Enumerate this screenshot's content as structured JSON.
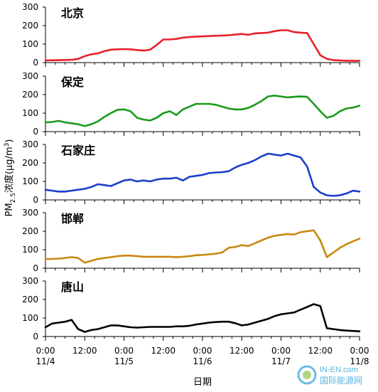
{
  "chart_data": {
    "type": "line",
    "ylabel_main": "PM",
    "ylabel_sub": "2.5",
    "ylabel_rest": "浓度(μg/m",
    "ylabel_sup": "3",
    "ylabel_close": ")",
    "xlabel": "日期",
    "xlim": [
      0,
      96
    ],
    "ylim": [
      0,
      300
    ],
    "yticks": [
      0,
      100,
      200,
      300
    ],
    "xticks": [
      {
        "x": 0,
        "time": "0:00",
        "date": "11/4"
      },
      {
        "x": 12,
        "time": "12:00",
        "date": ""
      },
      {
        "x": 24,
        "time": "0:00",
        "date": "11/5"
      },
      {
        "x": 36,
        "time": "12:00",
        "date": ""
      },
      {
        "x": 48,
        "time": "0:00",
        "date": "11/6"
      },
      {
        "x": 60,
        "time": "12:00",
        "date": ""
      },
      {
        "x": 72,
        "time": "0:00",
        "date": "11/7"
      },
      {
        "x": 84,
        "time": "12:00",
        "date": ""
      },
      {
        "x": 96,
        "time": "0:00",
        "date": "11/8"
      }
    ],
    "panels": [
      {
        "name": "北京",
        "color": "#e8202a",
        "x": [
          0,
          4,
          8,
          10,
          12,
          14,
          16,
          18,
          20,
          22,
          24,
          26,
          28,
          30,
          32,
          34,
          36,
          38,
          40,
          42,
          44,
          46,
          48,
          52,
          56,
          60,
          62,
          64,
          66,
          68,
          70,
          72,
          74,
          76,
          78,
          80,
          82,
          84,
          86,
          88,
          90,
          92,
          94,
          96
        ],
        "y": [
          12,
          13,
          15,
          20,
          35,
          45,
          50,
          62,
          70,
          72,
          73,
          72,
          68,
          65,
          70,
          95,
          125,
          125,
          128,
          135,
          138,
          140,
          142,
          145,
          148,
          155,
          150,
          158,
          160,
          162,
          170,
          175,
          175,
          165,
          162,
          160,
          100,
          40,
          20,
          14,
          12,
          10,
          10,
          10
        ]
      },
      {
        "name": "保定",
        "color": "#1a9a1a",
        "x": [
          0,
          2,
          4,
          6,
          8,
          10,
          12,
          14,
          16,
          18,
          20,
          22,
          24,
          26,
          28,
          30,
          32,
          34,
          36,
          38,
          40,
          42,
          44,
          46,
          48,
          50,
          52,
          54,
          56,
          58,
          60,
          62,
          64,
          66,
          68,
          70,
          72,
          74,
          76,
          78,
          80,
          82,
          84,
          86,
          88,
          90,
          92,
          94,
          96
        ],
        "y": [
          50,
          52,
          58,
          50,
          45,
          40,
          30,
          40,
          55,
          80,
          100,
          118,
          120,
          110,
          75,
          65,
          60,
          75,
          100,
          110,
          90,
          120,
          135,
          150,
          150,
          150,
          145,
          135,
          125,
          120,
          120,
          128,
          145,
          165,
          190,
          195,
          190,
          185,
          188,
          190,
          188,
          150,
          110,
          75,
          85,
          110,
          125,
          130,
          140
        ]
      },
      {
        "name": "石家庄",
        "color": "#1a3fc8",
        "x": [
          0,
          2,
          4,
          6,
          8,
          10,
          12,
          14,
          16,
          18,
          20,
          22,
          24,
          26,
          28,
          30,
          32,
          34,
          36,
          38,
          40,
          42,
          44,
          46,
          48,
          50,
          52,
          54,
          56,
          58,
          60,
          62,
          64,
          66,
          68,
          70,
          72,
          74,
          76,
          78,
          80,
          82,
          84,
          86,
          88,
          90,
          92,
          94,
          96
        ],
        "y": [
          55,
          50,
          45,
          45,
          50,
          55,
          60,
          70,
          85,
          80,
          75,
          90,
          105,
          110,
          100,
          105,
          100,
          110,
          115,
          115,
          120,
          105,
          125,
          130,
          135,
          145,
          148,
          150,
          155,
          175,
          190,
          200,
          215,
          235,
          250,
          245,
          240,
          250,
          240,
          230,
          180,
          70,
          40,
          25,
          22,
          25,
          35,
          50,
          45
        ]
      },
      {
        "name": "邯郸",
        "color": "#c8880f",
        "x": [
          0,
          2,
          4,
          6,
          8,
          10,
          12,
          14,
          16,
          18,
          20,
          22,
          24,
          26,
          28,
          30,
          32,
          34,
          36,
          38,
          40,
          42,
          44,
          46,
          48,
          50,
          52,
          54,
          56,
          58,
          60,
          62,
          64,
          66,
          68,
          70,
          72,
          74,
          76,
          78,
          80,
          82,
          84,
          86,
          88,
          90,
          92,
          94,
          96
        ],
        "y": [
          50,
          50,
          52,
          55,
          60,
          55,
          30,
          40,
          50,
          55,
          60,
          65,
          68,
          68,
          65,
          62,
          62,
          62,
          62,
          62,
          60,
          62,
          65,
          70,
          72,
          75,
          78,
          85,
          110,
          115,
          125,
          120,
          135,
          150,
          165,
          175,
          180,
          185,
          182,
          195,
          200,
          205,
          150,
          60,
          85,
          110,
          130,
          145,
          160
        ]
      },
      {
        "name": "唐山",
        "color": "#000000",
        "x": [
          0,
          2,
          4,
          6,
          8,
          10,
          12,
          14,
          16,
          18,
          20,
          22,
          24,
          26,
          28,
          30,
          32,
          34,
          36,
          38,
          40,
          42,
          44,
          46,
          48,
          50,
          52,
          54,
          56,
          58,
          60,
          62,
          64,
          66,
          68,
          70,
          72,
          74,
          76,
          78,
          80,
          82,
          84,
          86,
          88,
          90,
          92,
          94,
          96
        ],
        "y": [
          50,
          70,
          75,
          80,
          90,
          40,
          25,
          35,
          40,
          50,
          60,
          60,
          55,
          50,
          48,
          50,
          52,
          52,
          52,
          52,
          55,
          55,
          58,
          65,
          70,
          75,
          78,
          80,
          80,
          72,
          60,
          65,
          75,
          85,
          95,
          110,
          120,
          125,
          130,
          145,
          160,
          175,
          165,
          45,
          40,
          35,
          32,
          30,
          28
        ]
      }
    ]
  },
  "watermark": {
    "line1": "IN-EN.com",
    "line2": "国际能源网",
    "logo_color": "#3aa6d8"
  }
}
